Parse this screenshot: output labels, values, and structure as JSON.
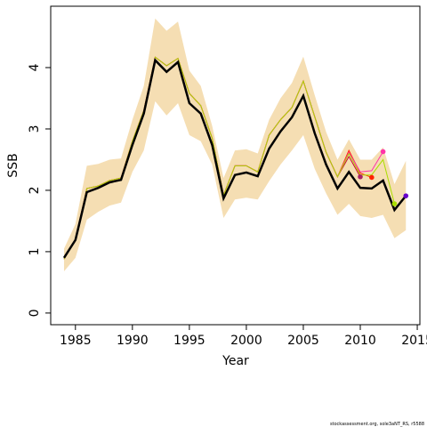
{
  "chart_data": {
    "type": "line",
    "x_label": "Year",
    "y_label": "SSB",
    "footer": "stockassessment.org, sole3aNT_RS, r5588",
    "x": [
      1984,
      1985,
      1986,
      1987,
      1988,
      1989,
      1990,
      1991,
      1992,
      1993,
      1994,
      1995,
      1996,
      1997,
      1998,
      1999,
      2000,
      2001,
      2002,
      2003,
      2004,
      2005,
      2006,
      2007,
      2008,
      2009,
      2010,
      2011,
      2012,
      2013,
      2014
    ],
    "band": {
      "color": "#f5deb3",
      "upper": [
        1.05,
        1.45,
        2.4,
        2.43,
        2.5,
        2.52,
        3.15,
        3.7,
        4.8,
        4.6,
        4.75,
        3.95,
        3.7,
        3.05,
        2.2,
        2.65,
        2.67,
        2.6,
        3.15,
        3.5,
        3.75,
        4.18,
        3.55,
        2.95,
        2.5,
        2.83,
        2.5,
        2.5,
        2.7,
        2.1,
        2.48
      ],
      "lower": [
        0.68,
        0.9,
        1.52,
        1.65,
        1.75,
        1.8,
        2.3,
        2.65,
        3.45,
        3.22,
        3.42,
        2.9,
        2.8,
        2.42,
        1.55,
        1.85,
        1.88,
        1.85,
        2.15,
        2.42,
        2.65,
        2.9,
        2.35,
        1.95,
        1.6,
        1.78,
        1.58,
        1.55,
        1.6,
        1.22,
        1.35
      ]
    },
    "series": [
      {
        "color": "#cc0033",
        "width": 1,
        "dot": "#aa2266",
        "values": [
          0.88,
          1.2,
          2.03,
          2.07,
          2.16,
          2.2,
          2.8,
          3.3,
          4.17,
          4.03,
          4.15,
          3.58,
          3.38,
          2.85,
          1.92,
          2.4,
          2.4,
          2.3,
          2.9,
          3.15,
          3.35,
          3.78,
          3.2,
          2.62,
          2.22,
          2.55,
          2.22,
          null,
          null,
          null,
          null
        ]
      },
      {
        "color": "#ff2200",
        "width": 1,
        "dot": "#ff2200",
        "values": [
          0.88,
          1.2,
          2.03,
          2.07,
          2.16,
          2.2,
          2.8,
          3.3,
          4.17,
          4.03,
          4.15,
          3.58,
          3.38,
          2.85,
          1.92,
          2.4,
          2.4,
          2.3,
          2.9,
          3.15,
          3.35,
          3.78,
          3.2,
          2.62,
          2.22,
          2.65,
          2.28,
          2.21,
          null,
          null,
          null
        ]
      },
      {
        "color": "#ff33aa",
        "width": 1,
        "dot": "#ff33aa",
        "values": [
          0.88,
          1.2,
          2.03,
          2.07,
          2.16,
          2.2,
          2.8,
          3.3,
          4.17,
          4.03,
          4.15,
          3.58,
          3.38,
          2.85,
          1.92,
          2.4,
          2.4,
          2.3,
          2.9,
          3.15,
          3.35,
          3.78,
          3.2,
          2.62,
          2.22,
          2.62,
          2.3,
          2.32,
          2.63,
          null,
          null
        ]
      },
      {
        "color": "#aadd00",
        "width": 1,
        "dot": "#aadd00",
        "values": [
          0.88,
          1.2,
          2.03,
          2.07,
          2.16,
          2.2,
          2.8,
          3.3,
          4.17,
          4.03,
          4.15,
          3.58,
          3.38,
          2.85,
          1.92,
          2.4,
          2.4,
          2.3,
          2.9,
          3.15,
          3.35,
          3.78,
          3.2,
          2.62,
          2.22,
          2.6,
          2.25,
          2.25,
          2.5,
          1.78,
          null
        ]
      },
      {
        "color": "#000000",
        "width": 2.5,
        "dot": "#6600cc",
        "values": [
          0.9,
          1.19,
          1.97,
          2.04,
          2.13,
          2.17,
          2.74,
          3.25,
          4.12,
          3.93,
          4.09,
          3.42,
          3.25,
          2.74,
          1.87,
          2.25,
          2.29,
          2.23,
          2.68,
          2.96,
          3.19,
          3.54,
          2.93,
          2.42,
          2.03,
          2.3,
          2.04,
          2.03,
          2.16,
          1.68,
          1.91
        ]
      }
    ],
    "xlim": [
      1982.83,
      2015.23
    ],
    "ylim": [
      -0.19,
      5.0
    ],
    "xticks": [
      1985,
      1990,
      1995,
      2000,
      2005,
      2010,
      2015
    ],
    "yticks": [
      0,
      1,
      2,
      3,
      4
    ]
  }
}
